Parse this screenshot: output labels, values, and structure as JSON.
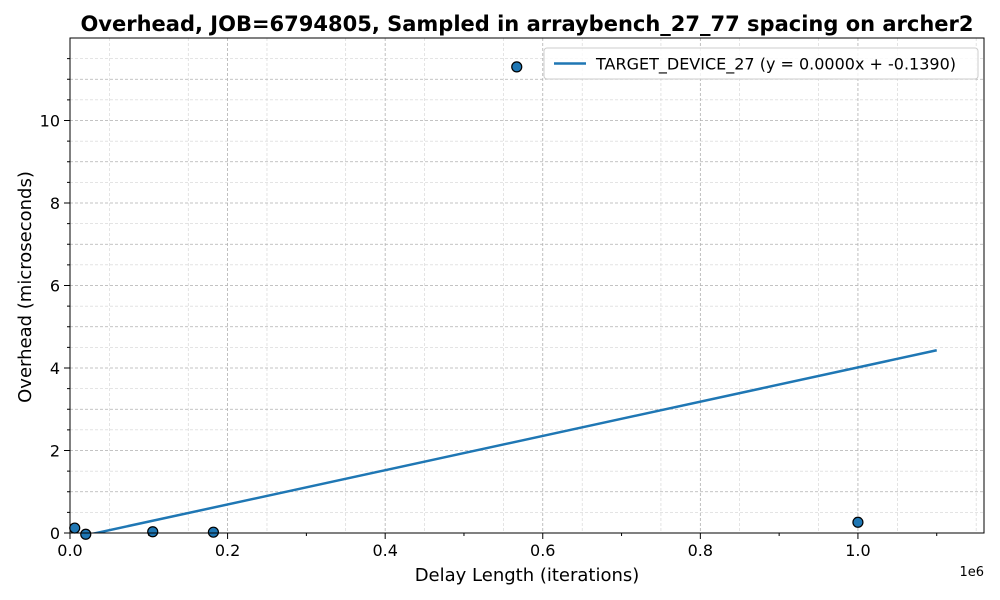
{
  "chart_data": {
    "type": "scatter",
    "title": "Overhead, JOB=6794805, Sampled in arraybench_27_77 spacing on archer2",
    "xlabel": "Delay Length (iterations)",
    "ylabel": "Overhead (microseconds)",
    "x_offset_label": "1e6",
    "xlim": [
      0,
      1160000
    ],
    "ylim": [
      0,
      12
    ],
    "x_ticks": [
      0,
      200000,
      400000,
      600000,
      800000,
      1000000
    ],
    "x_tick_labels": [
      "0.0",
      "0.2",
      "0.4",
      "0.6",
      "0.8",
      "1.0"
    ],
    "y_ticks": [
      0,
      2,
      4,
      6,
      8,
      10
    ],
    "y_tick_labels": [
      "0",
      "2",
      "4",
      "6",
      "8",
      "10"
    ],
    "grid": true,
    "legend_position": "top-right",
    "colors": {
      "series": "#1f77b4",
      "marker_edge": "#000000"
    },
    "points": [
      {
        "x": 6000,
        "y": 0.12
      },
      {
        "x": 20000,
        "y": -0.03
      },
      {
        "x": 105000,
        "y": 0.03
      },
      {
        "x": 182000,
        "y": 0.02
      },
      {
        "x": 567000,
        "y": 11.3
      },
      {
        "x": 1000000,
        "y": 0.26
      }
    ],
    "fit_line": {
      "name": "TARGET_DEVICE_27 (y = 0.0000x + -0.1390)",
      "x": [
        0,
        1100000
      ],
      "y": [
        -0.139,
        4.43
      ]
    }
  }
}
